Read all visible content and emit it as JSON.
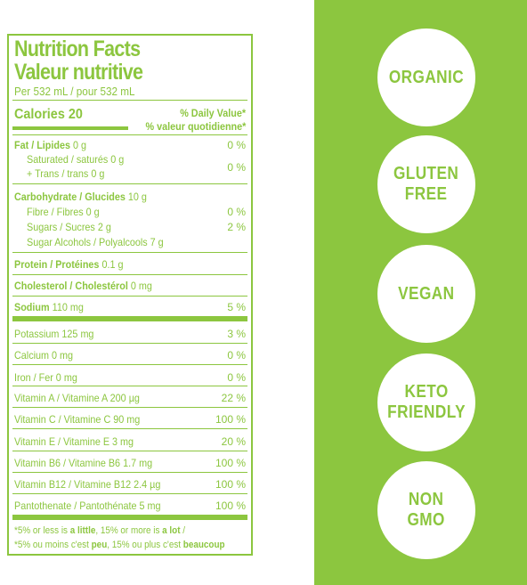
{
  "colors": {
    "brand_green": "#8cc63f",
    "background": "#ffffff"
  },
  "label": {
    "title_en": "Nutrition Facts",
    "title_fr": "Valeur nutritive",
    "serving": "Per 532 mL / pour 532 mL",
    "calories": "Calories 20",
    "dv_en": "% Daily Value*",
    "dv_fr": "% valeur quotidienne*",
    "rows": [
      {
        "name": "Fat / Lipides",
        "amount": "0 g",
        "dv": "0 %"
      },
      {
        "name": "Saturated / saturés 0 g",
        "amount": "",
        "dv": ""
      },
      {
        "name": "+ Trans / trans 0 g",
        "amount": "",
        "dv": "0 %"
      },
      {
        "name": "Carbohydrate / Glucides",
        "amount": "10 g",
        "dv": ""
      },
      {
        "name": "Fibre / Fibres 0 g",
        "amount": "",
        "dv": "0 %"
      },
      {
        "name": "Sugars / Sucres 2 g",
        "amount": "",
        "dv": "2 %"
      },
      {
        "name": "Sugar Alcohols / Polyalcools 7 g",
        "amount": "",
        "dv": ""
      },
      {
        "name": "Protein / Protéines",
        "amount": "0.1 g",
        "dv": ""
      },
      {
        "name": "Cholesterol / Cholestérol",
        "amount": "0 mg",
        "dv": ""
      },
      {
        "name": "Sodium",
        "amount": "110 mg",
        "dv": "5 %"
      },
      {
        "name": "Potassium 125 mg",
        "amount": "",
        "dv": "3 %"
      },
      {
        "name": "Calcium 0 mg",
        "amount": "",
        "dv": "0 %"
      },
      {
        "name": "Iron / Fer 0 mg",
        "amount": "",
        "dv": "0 %"
      },
      {
        "name": "Vitamin A / Vitamine A 200 µg",
        "amount": "",
        "dv": "22 %"
      },
      {
        "name": "Vitamin C / Vitamine C 90 mg",
        "amount": "",
        "dv": "100 %"
      },
      {
        "name": "Vitamin E / Vitamine E 3 mg",
        "amount": "",
        "dv": "20 %"
      },
      {
        "name": "Vitamin B6 / Vitamine B6 1.7 mg",
        "amount": "",
        "dv": "100 %"
      },
      {
        "name": "Vitamin B12 / Vitamine B12 2.4 µg",
        "amount": "",
        "dv": "100 %"
      },
      {
        "name": "Pantothenate / Pantothénate 5 mg",
        "amount": "",
        "dv": "100 %"
      }
    ],
    "footnote_en_1": "*5% or less is ",
    "footnote_en_b1": "a little",
    "footnote_en_2": ", 15% or more is ",
    "footnote_en_b2": "a lot",
    "footnote_en_3": " /",
    "footnote_fr_1": "*5% ou moins c'est ",
    "footnote_fr_b1": "peu",
    "footnote_fr_2": ", 15% ou plus c'est ",
    "footnote_fr_b2": "beaucoup"
  },
  "badges": [
    "ORGANIC",
    "GLUTEN\nFREE",
    "VEGAN",
    "KETO\nFRIENDLY",
    "NON\nGMO"
  ]
}
